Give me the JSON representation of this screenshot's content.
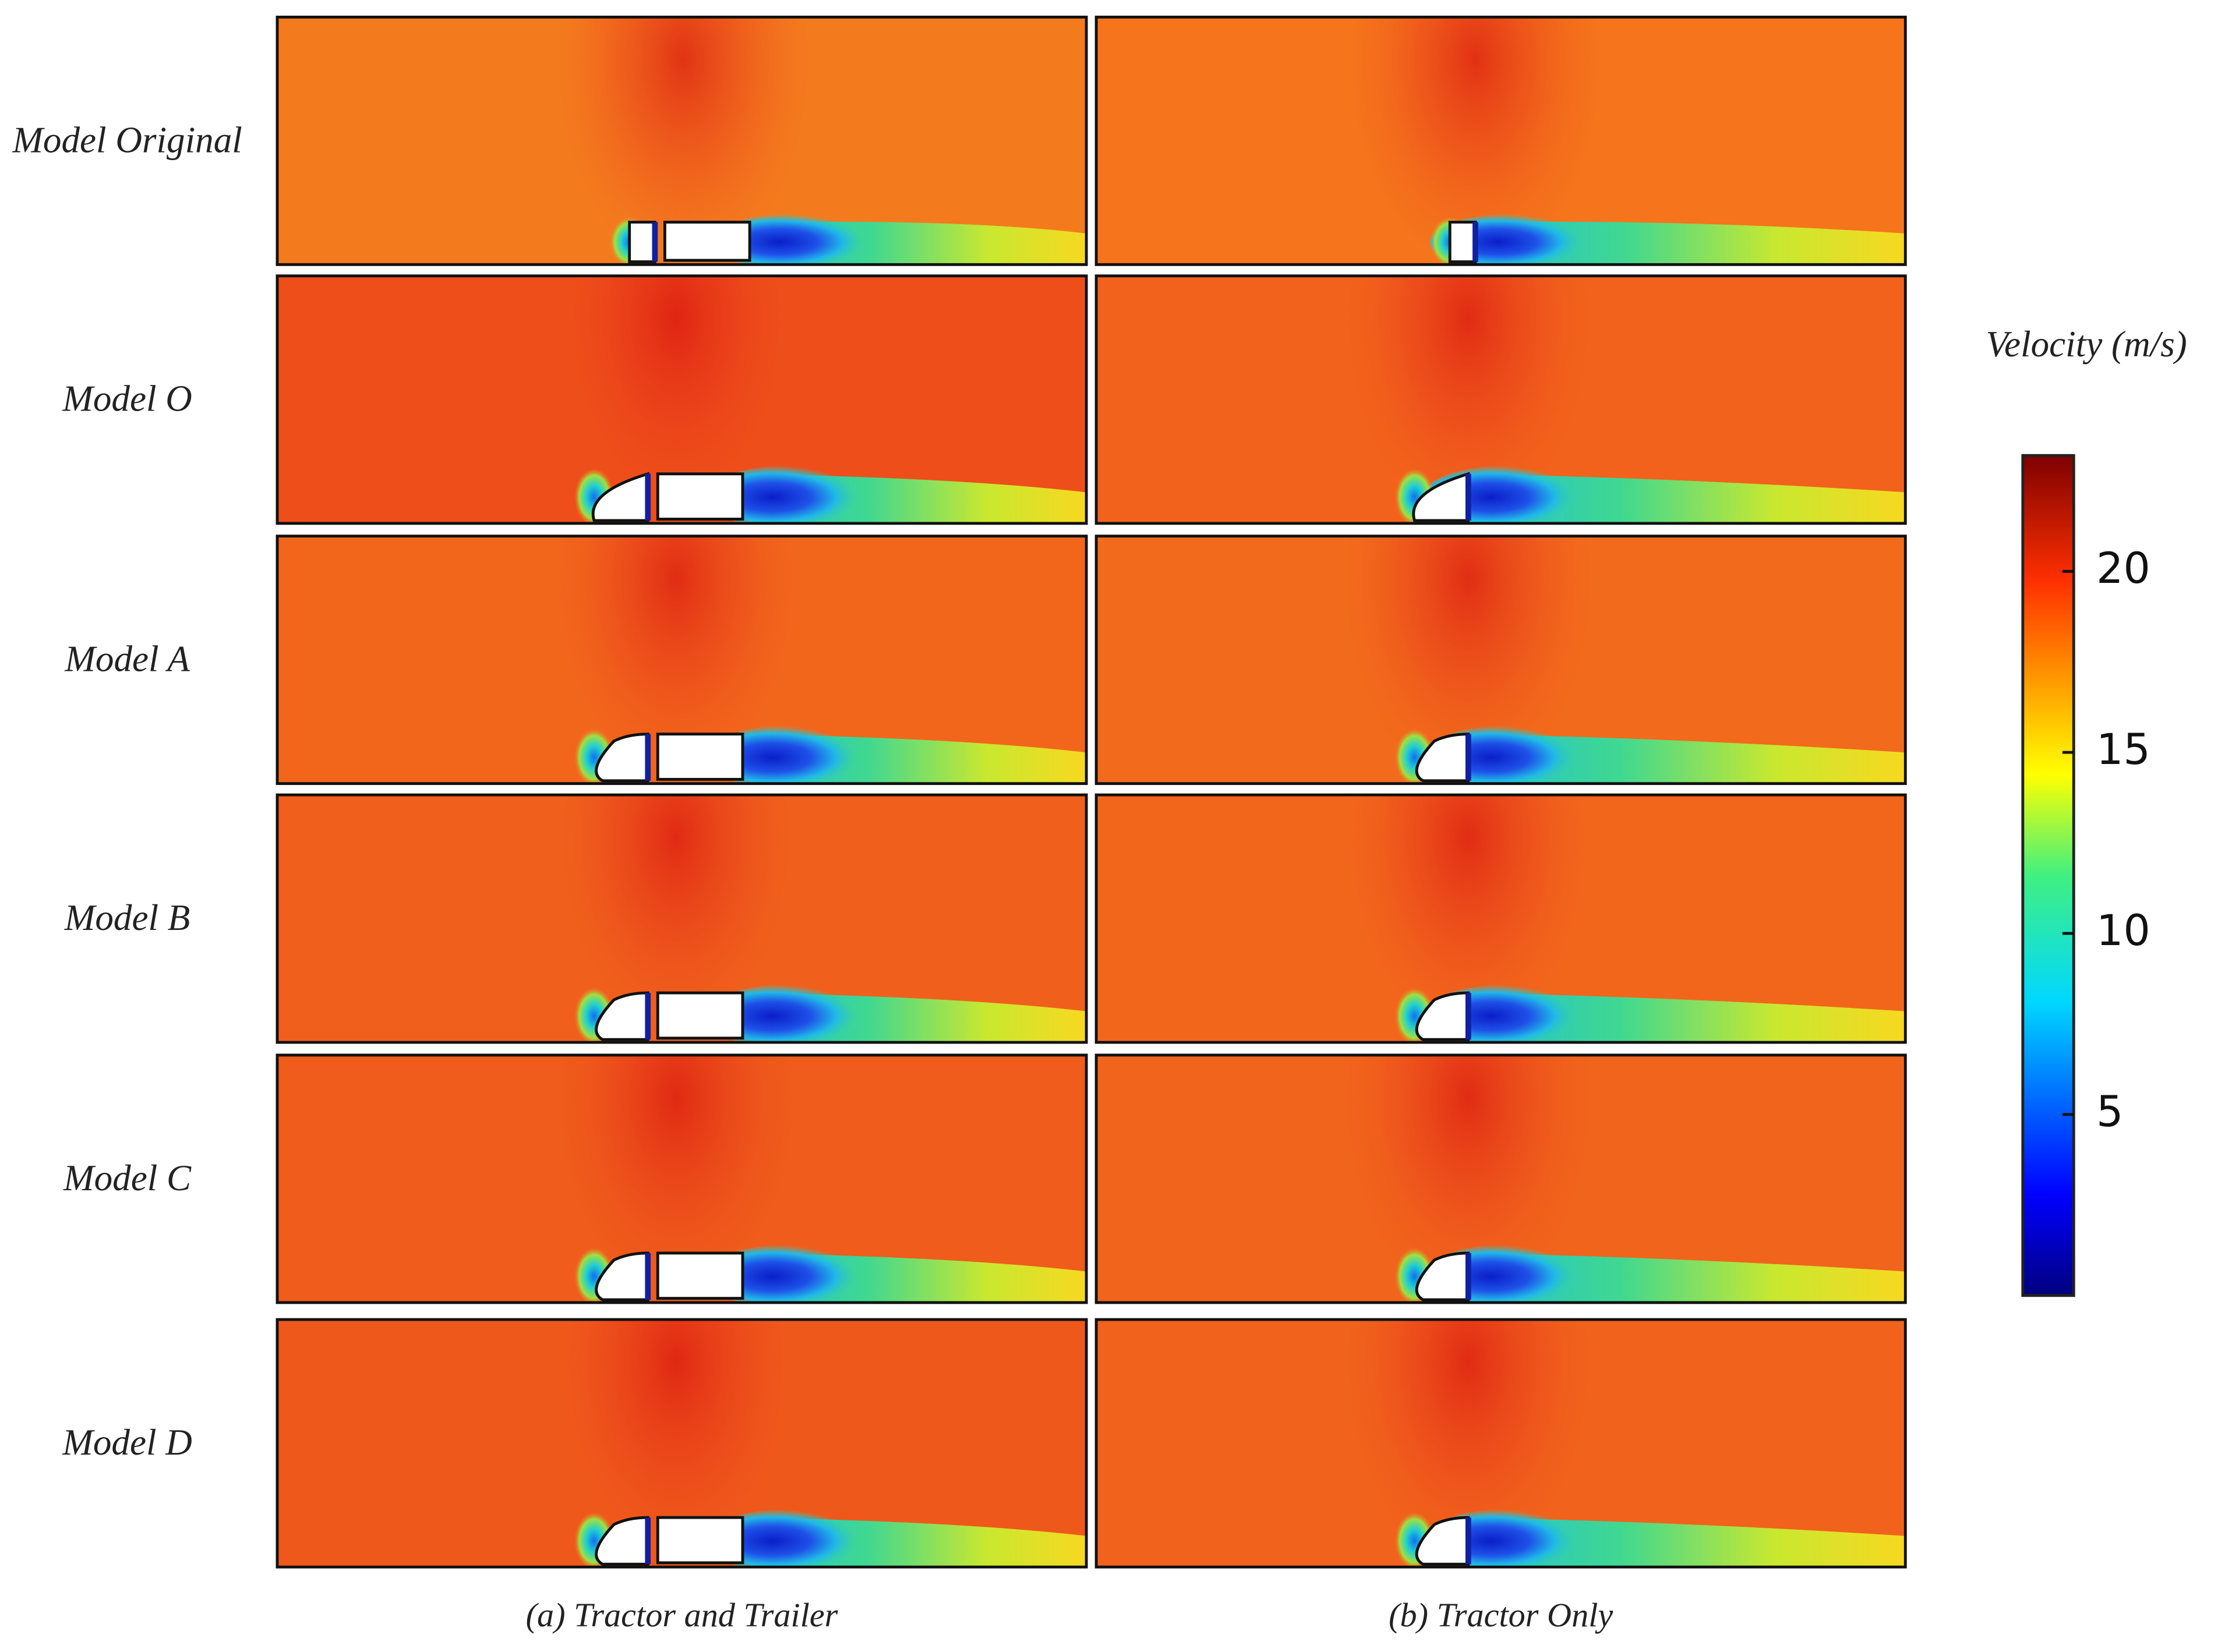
{
  "figure": {
    "rows": [
      "Model Original",
      "Model O",
      "Model A",
      "Model B",
      "Model C",
      "Model D"
    ],
    "columns": [
      "(a) Tractor and Trailer",
      "(b) Tractor Only"
    ],
    "colorbar": {
      "title": "Velocity (m/s)",
      "lim": [
        0,
        23.2
      ],
      "ticks": [
        5,
        10,
        15,
        20
      ]
    }
  }
}
